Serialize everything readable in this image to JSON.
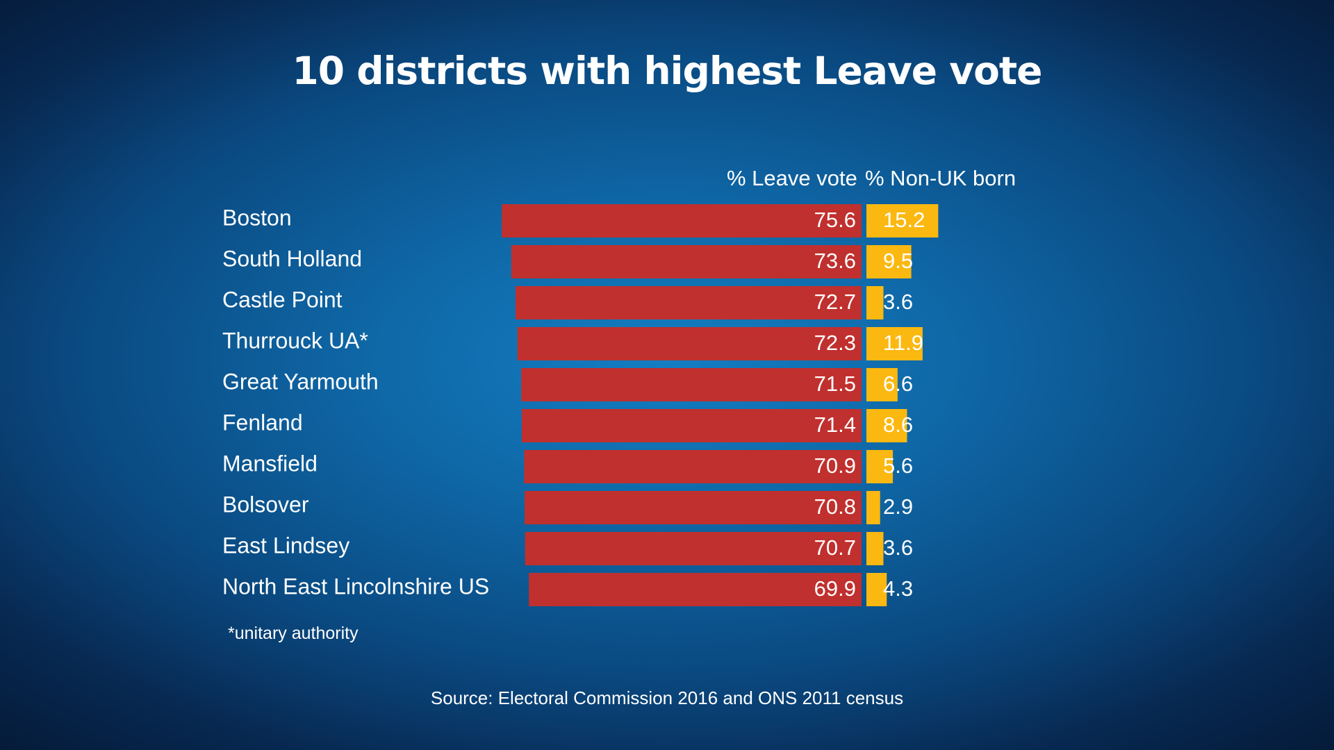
{
  "colors": {
    "leave_bar": "#c0302e",
    "nonuk_bar": "#fbb811",
    "text": "#ffffff"
  },
  "chart_data": {
    "type": "bar",
    "orientation": "horizontal",
    "title": "10 districts with highest Leave vote",
    "categories": [
      "Boston",
      "South Holland",
      "Castle Point",
      "Thurrouck UA*",
      "Great Yarmouth",
      "Fenland",
      "Mansfield",
      "Bolsover",
      "East Lindsey",
      "North East Lincolnshire US"
    ],
    "series": [
      {
        "name": "% Leave vote",
        "values": [
          75.6,
          73.6,
          72.7,
          72.3,
          71.5,
          71.4,
          70.9,
          70.8,
          70.7,
          69.9
        ],
        "labels": [
          "75.6",
          "73.6",
          "72.7",
          "72.3",
          "71.5",
          "71.4",
          "70.9",
          "70.8",
          "70.7",
          "69.9"
        ]
      },
      {
        "name": "% Non-UK born",
        "values": [
          15.2,
          9.5,
          3.6,
          11.9,
          6.6,
          8.6,
          5.6,
          2.9,
          3.6,
          4.3
        ],
        "labels": [
          "15.2",
          "9.5",
          "3.6",
          "11.9",
          "6.6",
          "8.6",
          "5.6",
          "2.9",
          "3.6",
          "4.3"
        ]
      }
    ],
    "headers": {
      "leave": "% Leave vote",
      "nonuk": "% Non-UK born"
    },
    "footnote": "*unitary authority",
    "source": "Source: Electoral Commission 2016 and ONS 2011 census"
  }
}
